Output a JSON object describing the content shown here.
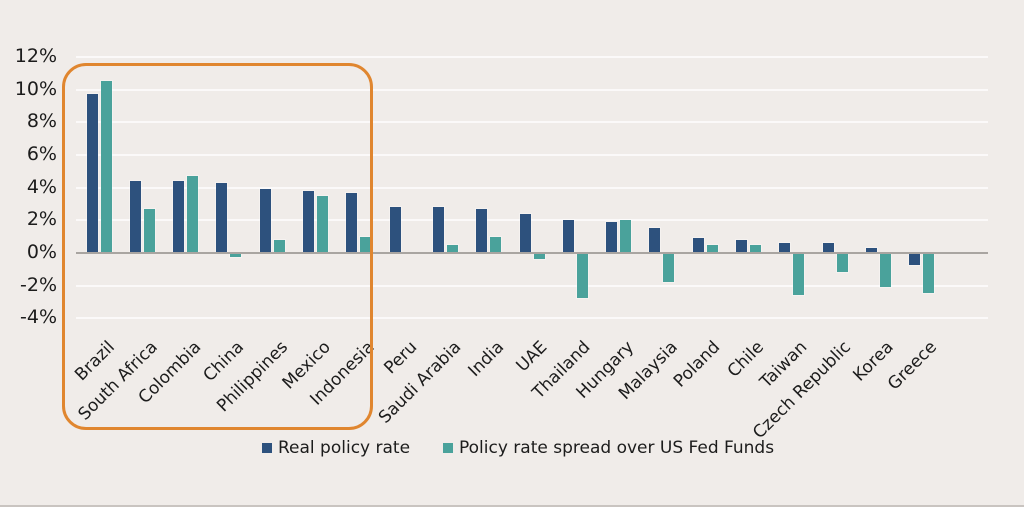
{
  "chart_data": {
    "type": "bar",
    "title": "",
    "categories": [
      "Brazil",
      "South Africa",
      "Colombia",
      "China",
      "Philippines",
      "Mexico",
      "Indonesia",
      "Peru",
      "Saudi Arabia",
      "India",
      "UAE",
      "Thailand",
      "Hungary",
      "Malaysia",
      "Poland",
      "Chile",
      "Taiwan",
      "Czech Republic",
      "Korea",
      "Greece"
    ],
    "series": [
      {
        "name": "Real policy rate",
        "color": "#2d517d",
        "values": [
          9.7,
          4.4,
          4.4,
          4.3,
          3.9,
          3.8,
          3.7,
          2.8,
          2.8,
          2.7,
          2.4,
          2.0,
          1.9,
          1.5,
          0.9,
          0.8,
          0.6,
          0.6,
          0.3,
          -0.7
        ]
      },
      {
        "name": "Policy rate spread over US Fed Funds",
        "color": "#4aa29b",
        "values": [
          10.5,
          2.7,
          4.7,
          -0.2,
          0.8,
          3.5,
          1.0,
          0.0,
          0.5,
          1.0,
          -0.3,
          -2.7,
          2.0,
          -1.7,
          0.5,
          0.5,
          -2.5,
          -1.1,
          -2.0,
          -2.4
        ]
      }
    ],
    "xlabel": "",
    "ylabel": "",
    "ylim": [
      -4,
      12
    ],
    "yticks": [
      {
        "value": 12,
        "label": "12%"
      },
      {
        "value": 10,
        "label": "10%"
      },
      {
        "value": 8,
        "label": "8%"
      },
      {
        "value": 6,
        "label": "6%"
      },
      {
        "value": 4,
        "label": "4%"
      },
      {
        "value": 2,
        "label": "2%"
      },
      {
        "value": 0,
        "label": "0%"
      },
      {
        "value": -2,
        "label": "-2%"
      },
      {
        "value": -4,
        "label": "-4%"
      }
    ],
    "grid": "horizontal-faint",
    "legend_position": "bottom",
    "highlight_box": {
      "categories_from": "Brazil",
      "categories_to": "Indonesia",
      "color": "#e0862f"
    }
  },
  "legend": {
    "items": [
      {
        "label": "Real policy rate",
        "color": "#2d517d"
      },
      {
        "label": "Policy rate spread over US Fed Funds",
        "color": "#4aa29b"
      }
    ]
  },
  "colors": {
    "background": "#f0ece9",
    "axis": "#a9a5a1",
    "text": "#1c1c1c",
    "highlight": "#e0862f"
  }
}
